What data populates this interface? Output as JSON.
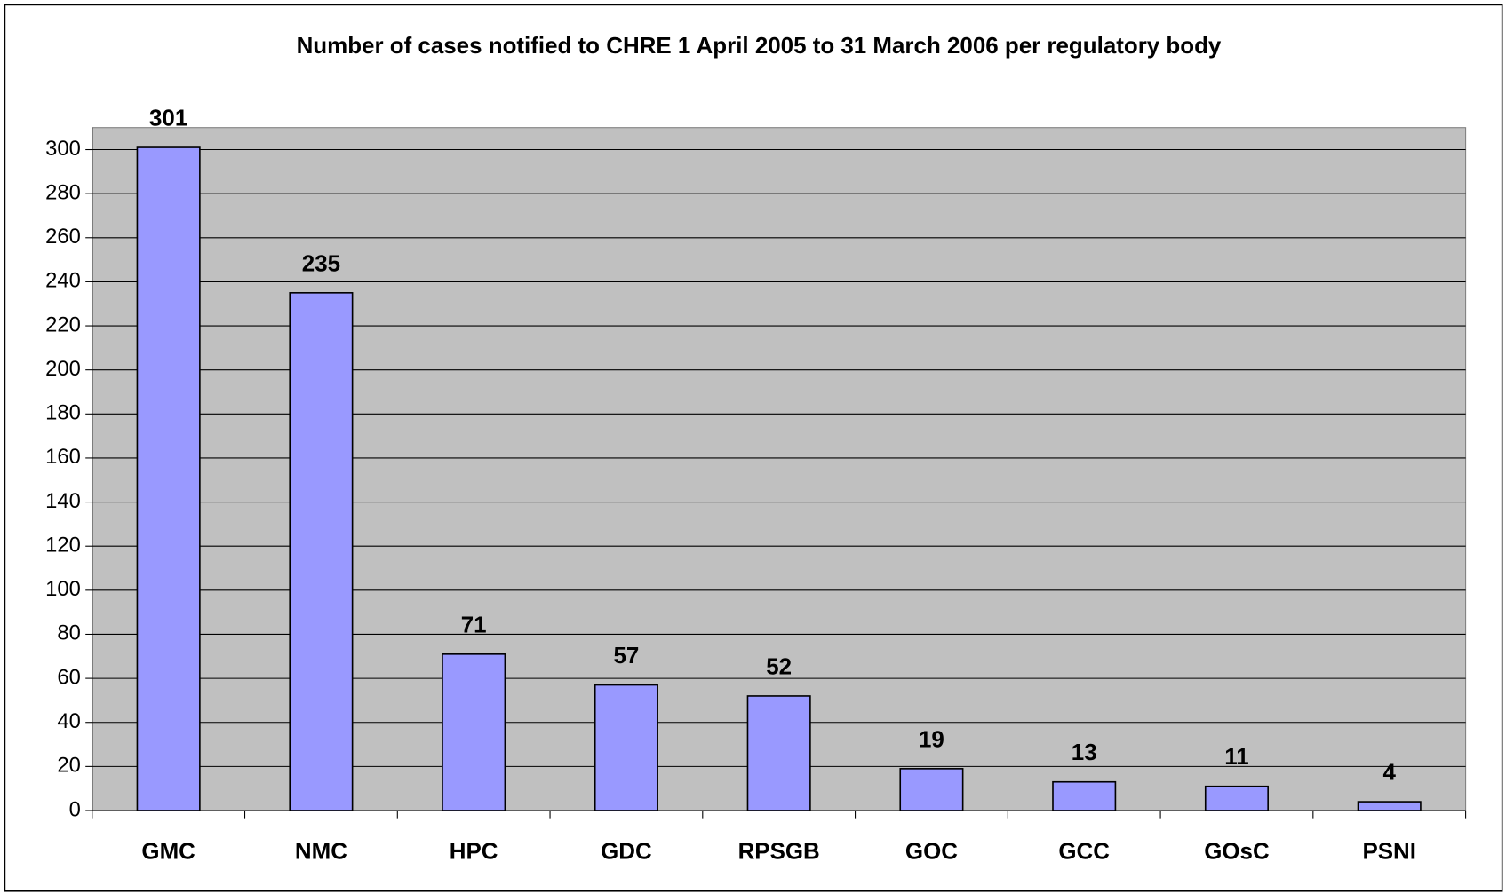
{
  "chart_data": {
    "type": "bar",
    "title": "Number of cases notified to CHRE 1 April 2005 to 31 March 2006 per regulatory body",
    "categories": [
      "GMC",
      "NMC",
      "HPC",
      "GDC",
      "RPSGB",
      "GOC",
      "GCC",
      "GOsC",
      "PSNI"
    ],
    "values": [
      301,
      235,
      71,
      57,
      52,
      19,
      13,
      11,
      4
    ],
    "color": "#9999ff",
    "plot_background": "#c0c0c0",
    "ylim": [
      0,
      310
    ],
    "yticks": [
      0,
      20,
      40,
      60,
      80,
      100,
      120,
      140,
      160,
      180,
      200,
      220,
      240,
      260,
      280,
      300
    ],
    "grid": true
  }
}
